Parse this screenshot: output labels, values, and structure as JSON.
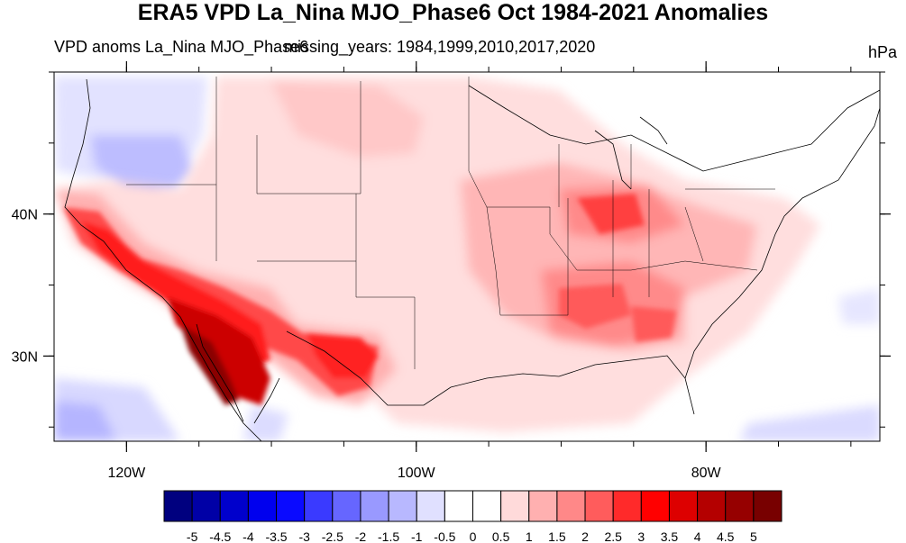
{
  "title": "ERA5 VPD La_Nina MJO_Phase6 Oct 1984-2021 Anomalies",
  "subtitle_left": "VPD anoms La_Nina MJO_Phase6",
  "subtitle_overlay": "missing_years: 1984,1999,2010,2017,2020",
  "units": "hPa",
  "map": {
    "projection": "cylindrical equidistant",
    "lon_range": [
      -125,
      -68
    ],
    "lat_range": [
      24,
      50
    ],
    "lon_ticks": [
      {
        "value": -120,
        "label": "120W"
      },
      {
        "value": -100,
        "label": "100W"
      },
      {
        "value": -80,
        "label": "80W"
      }
    ],
    "lat_ticks": [
      {
        "value": 40,
        "label": "40N"
      },
      {
        "value": 30,
        "label": "30N"
      }
    ]
  },
  "colorbar": {
    "labels": [
      "-5",
      "-4.5",
      "-4",
      "-3.5",
      "-3",
      "-2.5",
      "-2",
      "-1.5",
      "-1",
      "-0.5",
      "0",
      "0.5",
      "1",
      "1.5",
      "2",
      "2.5",
      "3",
      "3.5",
      "4",
      "4.5",
      "5"
    ],
    "colors": [
      "#00007f",
      "#0000a6",
      "#0000cc",
      "#0000ee",
      "#0a0aff",
      "#3a3aff",
      "#6666ff",
      "#9999ff",
      "#b8b8ff",
      "#e0e0ff",
      "#ffffff",
      "#ffffff",
      "#ffdada",
      "#ffb0b0",
      "#ff8888",
      "#ff5c5c",
      "#ff2a2a",
      "#ff0000",
      "#dd0000",
      "#b40000",
      "#960000",
      "#780000"
    ]
  }
}
